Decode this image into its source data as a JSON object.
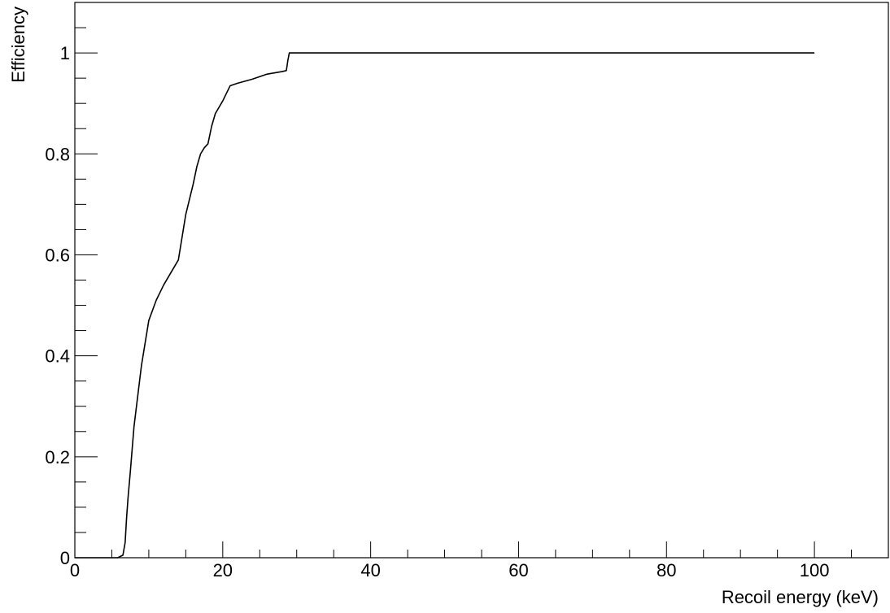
{
  "chart_data": {
    "type": "line",
    "title": "",
    "xlabel": "Recoil energy (keV)",
    "ylabel": "Efficiency",
    "xlim": [
      0,
      110
    ],
    "ylim": [
      0,
      1.1
    ],
    "x_ticks": [
      0,
      20,
      40,
      60,
      80,
      100
    ],
    "x_tick_labels": [
      "0",
      "20",
      "40",
      "60",
      "80",
      "100"
    ],
    "y_ticks": [
      0,
      0.2,
      0.4,
      0.6,
      0.8,
      1
    ],
    "y_tick_labels": [
      "0",
      "0.2",
      "0.4",
      "0.6",
      "0.8",
      "1"
    ],
    "grid": false,
    "line_color": "#000000",
    "series": [
      {
        "x": [
          0,
          5.8,
          6.5,
          6.8,
          7.0,
          7.2,
          7.5,
          8.0,
          9.0,
          10.0,
          10.5,
          11.0,
          12.0,
          13.0,
          14.0,
          15.0,
          16.0,
          16.5,
          17.0,
          17.5,
          18.0,
          18.5,
          19.0,
          20.0,
          21.0,
          22.0,
          24.0,
          26.0,
          28.0,
          28.6,
          28.8,
          29.0,
          40.0,
          60.0,
          80.0,
          88.0,
          100.0
        ],
        "y": [
          0,
          0,
          0.005,
          0.03,
          0.08,
          0.12,
          0.17,
          0.26,
          0.38,
          0.47,
          0.49,
          0.51,
          0.54,
          0.565,
          0.59,
          0.68,
          0.74,
          0.775,
          0.8,
          0.812,
          0.82,
          0.855,
          0.88,
          0.905,
          0.935,
          0.94,
          0.948,
          0.958,
          0.963,
          0.965,
          0.985,
          1.0,
          1.0,
          1.0,
          1.0,
          1.0,
          1.0
        ]
      }
    ]
  }
}
